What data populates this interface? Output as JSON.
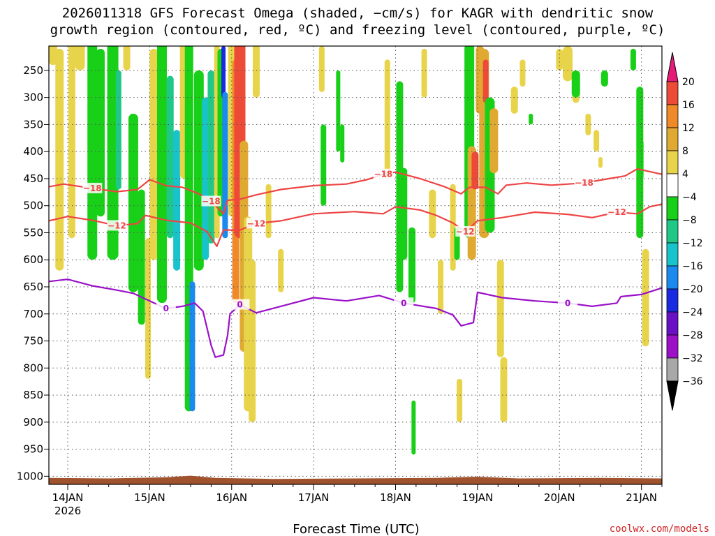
{
  "chart_data": {
    "type": "heatmap",
    "title_line1": "2026011318 GFS Forecast Omega (shaded, −cm/s) for KAGR with dendritic snow",
    "title_line2": "growth region (contoured, red, ºC) and freezing level (contoured, purple, ºC)",
    "xlabel": "Forecast Time (UTC)",
    "credit": "coolwx.com/models",
    "year_label": "2026",
    "x_ticks": [
      "14JAN",
      "15JAN",
      "16JAN",
      "17JAN",
      "18JAN",
      "19JAN",
      "20JAN",
      "21JAN"
    ],
    "x_range_days": [
      13.77,
      21.25
    ],
    "y_ticks": [
      250,
      300,
      350,
      400,
      450,
      500,
      550,
      600,
      650,
      700,
      750,
      800,
      850,
      900,
      950,
      1000
    ],
    "y_range_hpa": [
      205,
      1015
    ],
    "colorbar": {
      "labels": [
        "20",
        "16",
        "12",
        "8",
        "4",
        "−4",
        "−8",
        "−12",
        "−16",
        "−20",
        "−24",
        "−28",
        "−32",
        "−36"
      ],
      "colors": [
        "#ffffff",
        "#e8d44a",
        "#e0aa32",
        "#f08a28",
        "#ee4a38",
        "#e61a78",
        "#000000",
        "#a8a8a8",
        "#9c10c8",
        "#6a10c4",
        "#1a2ae0",
        "#1a8aee",
        "#18c4cc",
        "#20c888",
        "#18d018"
      ]
    },
    "contours": {
      "minus18": {
        "label": "−18",
        "color": "#ee4444",
        "points": [
          [
            13.77,
            465
          ],
          [
            13.95,
            460
          ],
          [
            14.3,
            468
          ],
          [
            14.6,
            474
          ],
          [
            14.85,
            470
          ],
          [
            15.0,
            452
          ],
          [
            15.2,
            463
          ],
          [
            15.4,
            466
          ],
          [
            15.6,
            478
          ],
          [
            15.75,
            492
          ],
          [
            15.9,
            515
          ],
          [
            15.95,
            490
          ],
          [
            16.1,
            488
          ],
          [
            16.3,
            480
          ],
          [
            16.6,
            470
          ],
          [
            17.0,
            463
          ],
          [
            17.4,
            460
          ],
          [
            17.65,
            452
          ],
          [
            17.85,
            442
          ],
          [
            18.0,
            438
          ],
          [
            18.3,
            450
          ],
          [
            18.6,
            465
          ],
          [
            18.8,
            478
          ],
          [
            18.9,
            466
          ],
          [
            19.1,
            466
          ],
          [
            19.25,
            478
          ],
          [
            19.35,
            462
          ],
          [
            19.6,
            458
          ],
          [
            19.9,
            462
          ],
          [
            20.3,
            458
          ],
          [
            20.6,
            450
          ],
          [
            20.8,
            445
          ],
          [
            20.95,
            432
          ],
          [
            21.25,
            442
          ]
        ]
      },
      "minus12": {
        "label": "−12",
        "color": "#ee4444",
        "points": [
          [
            13.77,
            528
          ],
          [
            14.0,
            520
          ],
          [
            14.3,
            527
          ],
          [
            14.6,
            537
          ],
          [
            14.85,
            533
          ],
          [
            14.95,
            518
          ],
          [
            15.2,
            527
          ],
          [
            15.5,
            532
          ],
          [
            15.7,
            548
          ],
          [
            15.82,
            575
          ],
          [
            15.9,
            545
          ],
          [
            16.1,
            545
          ],
          [
            16.3,
            533
          ],
          [
            16.6,
            528
          ],
          [
            17.0,
            515
          ],
          [
            17.5,
            511
          ],
          [
            17.85,
            515
          ],
          [
            18.0,
            502
          ],
          [
            18.3,
            508
          ],
          [
            18.5,
            518
          ],
          [
            18.7,
            532
          ],
          [
            18.85,
            548
          ],
          [
            19.0,
            528
          ],
          [
            19.3,
            522
          ],
          [
            19.7,
            512
          ],
          [
            20.1,
            516
          ],
          [
            20.4,
            522
          ],
          [
            20.7,
            512
          ],
          [
            20.95,
            515
          ],
          [
            21.1,
            502
          ],
          [
            21.25,
            497
          ]
        ]
      },
      "freezing0": {
        "label": "0",
        "color": "#9a10c8",
        "points": [
          [
            13.77,
            640
          ],
          [
            14.0,
            636
          ],
          [
            14.3,
            648
          ],
          [
            14.6,
            656
          ],
          [
            14.8,
            662
          ],
          [
            15.0,
            676
          ],
          [
            15.2,
            690
          ],
          [
            15.4,
            686
          ],
          [
            15.55,
            680
          ],
          [
            15.65,
            695
          ],
          [
            15.75,
            758
          ],
          [
            15.8,
            780
          ],
          [
            15.9,
            776
          ],
          [
            15.95,
            740
          ],
          [
            15.98,
            700
          ],
          [
            16.1,
            683
          ],
          [
            16.3,
            698
          ],
          [
            16.6,
            686
          ],
          [
            17.0,
            670
          ],
          [
            17.4,
            676
          ],
          [
            17.8,
            666
          ],
          [
            18.1,
            680
          ],
          [
            18.5,
            690
          ],
          [
            18.7,
            702
          ],
          [
            18.8,
            722
          ],
          [
            18.95,
            716
          ],
          [
            19.0,
            660
          ],
          [
            19.3,
            670
          ],
          [
            19.7,
            676
          ],
          [
            20.1,
            680
          ],
          [
            20.4,
            686
          ],
          [
            20.7,
            680
          ],
          [
            20.75,
            668
          ],
          [
            21.0,
            664
          ],
          [
            21.25,
            652
          ]
        ]
      }
    }
  }
}
